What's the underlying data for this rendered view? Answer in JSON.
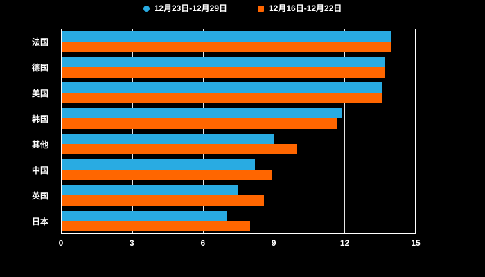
{
  "legend": {
    "items": [
      {
        "label": "12月23日-12月29日",
        "color": "#29abe2",
        "shape": "circle"
      },
      {
        "label": "12月16日-12月22日",
        "color": "#ff6600",
        "shape": "square"
      }
    ]
  },
  "chart_data": {
    "type": "bar",
    "orientation": "horizontal",
    "title": "",
    "xlabel": "",
    "ylabel": "",
    "categories": [
      "法国",
      "德国",
      "美国",
      "韩国",
      "其他",
      "中国",
      "英国",
      "日本"
    ],
    "series": [
      {
        "name": "12月23日-12月29日",
        "color": "#29abe2",
        "values": [
          14.0,
          13.7,
          13.6,
          11.9,
          9.0,
          8.2,
          7.5,
          7.0
        ]
      },
      {
        "name": "12月16日-12月22日",
        "color": "#ff6600",
        "values": [
          14.0,
          13.7,
          13.6,
          11.7,
          10.0,
          8.9,
          8.6,
          8.0
        ]
      }
    ],
    "xlim": [
      0,
      15
    ],
    "x_ticks": [
      0,
      3,
      6,
      9,
      12,
      15
    ],
    "grid": true,
    "legend_position": "top",
    "background": "#000000"
  }
}
